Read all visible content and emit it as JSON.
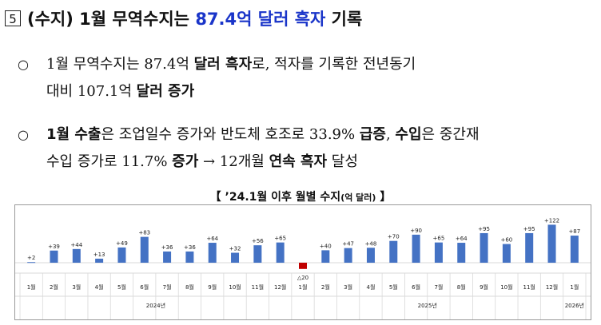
{
  "heading": {
    "number": "5",
    "text_prefix": "(수지) 1월 무역수지는 ",
    "text_highlight": "87.4억 달러 흑자",
    "text_suffix": " 기록"
  },
  "bullets": [
    {
      "marker": "○",
      "lines": [
        [
          {
            "t": "1월 무역수지는 87.4억 ",
            "b": false
          },
          {
            "t": "달러 흑자",
            "b": true
          },
          {
            "t": "로, 적자를 기록한 전년동기",
            "b": false
          }
        ],
        [
          {
            "t": "대비 107.1억 ",
            "b": false
          },
          {
            "t": "달러 증가",
            "b": true
          }
        ]
      ]
    },
    {
      "marker": "○",
      "lines": [
        [
          {
            "t": "1월 ",
            "b": true
          },
          {
            "t": "수출",
            "b": true
          },
          {
            "t": "은 조업일수 증가와 반도체 호조로 33.9% ",
            "b": false
          },
          {
            "t": "급증",
            "b": true
          },
          {
            "t": ", ",
            "b": false
          },
          {
            "t": "수입",
            "b": true
          },
          {
            "t": "은 중간재",
            "b": false
          }
        ],
        [
          {
            "t": "수입 증가로 11.7% ",
            "b": false
          },
          {
            "t": "증가",
            "b": true
          },
          {
            "t": " → 12개월 ",
            "b": false
          },
          {
            "t": "연속 흑자",
            "b": true
          },
          {
            "t": " 달성",
            "b": false
          }
        ]
      ]
    }
  ],
  "chart_title": {
    "open": "【 ",
    "main": "’24.1월 이후 월별 수지",
    "unit": "(억 달러)",
    "close": " 】"
  },
  "chart_data": {
    "type": "bar",
    "categories": [
      "1월",
      "2월",
      "3월",
      "4월",
      "5월",
      "6월",
      "7월",
      "8월",
      "9월",
      "10월",
      "11월",
      "12월",
      "1월",
      "2월",
      "3월",
      "4월",
      "5월",
      "6월",
      "7월",
      "8월",
      "9월",
      "10월",
      "11월",
      "12월",
      "1월"
    ],
    "values": [
      2,
      39,
      44,
      13,
      49,
      83,
      36,
      36,
      64,
      32,
      56,
      65,
      -20,
      40,
      47,
      48,
      70,
      90,
      65,
      64,
      95,
      60,
      95,
      122,
      87
    ],
    "labels": [
      "+2",
      "+39",
      "+44",
      "+13",
      "+49",
      "+83",
      "+36",
      "+36",
      "+64",
      "+32",
      "+56",
      "+65",
      "△20",
      "+40",
      "+47",
      "+48",
      "+70",
      "+90",
      "+65",
      "+64",
      "+95",
      "+60",
      "+95",
      "+122",
      "+87"
    ],
    "years": [
      {
        "label": "2024년",
        "start": 0,
        "end": 11
      },
      {
        "label": "2025년",
        "start": 12,
        "end": 23
      },
      {
        "label": "2026년",
        "start": 24,
        "end": 24
      }
    ],
    "colors": {
      "positive": "#4472c4",
      "negative": "#c00000",
      "grid": "#d9d9d9",
      "axis": "#555555"
    }
  }
}
